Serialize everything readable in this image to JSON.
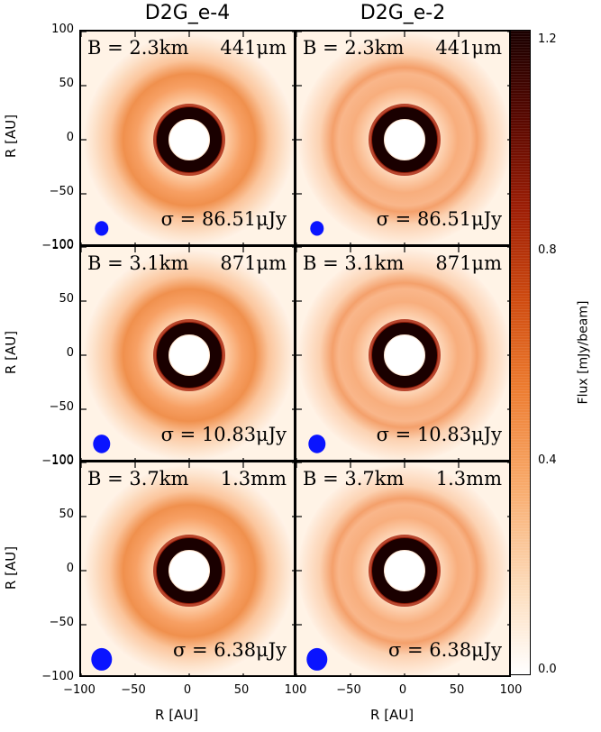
{
  "figure": {
    "columns": [
      "D2G_e-4",
      "D2G_e-2"
    ],
    "rows": [
      {
        "baseline": "B = 2.3km",
        "wavelength": "441μm",
        "sigma": "σ = 86.51μJy",
        "beam_rel_size": 0.6
      },
      {
        "baseline": "B = 3.1km",
        "wavelength": "871μm",
        "sigma": "σ = 10.83μJy",
        "beam_rel_size": 0.8
      },
      {
        "baseline": "B = 3.7km",
        "wavelength": "1.3mm",
        "sigma": "σ = 6.38μJy",
        "beam_rel_size": 1.0
      }
    ],
    "y_axis_label": "R [AU]",
    "x_axis_label": "R [AU]",
    "y_ticks": [
      "100",
      "50",
      "0",
      "−50",
      "−100"
    ],
    "x_ticks_left": [
      "−100",
      "−50",
      "0",
      "50",
      "100"
    ],
    "x_ticks_right": [
      "−100",
      "−50",
      "0",
      "50",
      "100"
    ],
    "colorbar": {
      "label": "Flux [mJy/beam]",
      "ticks": [
        "1.2",
        "0.8",
        "0.4",
        "0.0"
      ],
      "colormap": "gist_heat_r",
      "range": [
        0.0,
        1.22
      ]
    },
    "colors": {
      "beam": "#0a14ff",
      "ring": "#1a0000",
      "center": "#ffffff",
      "halo": "#e8762b"
    }
  },
  "chart_data": [
    {
      "type": "heatmap",
      "panel": "D2G_e-4 / 441μm",
      "title": "D2G_e-4",
      "xlim": [
        -100,
        100
      ],
      "ylim": [
        -100,
        100
      ],
      "xlabel": "",
      "ylabel": "R [AU]",
      "annotations": [
        "B = 2.3km",
        "441μm",
        "σ = 86.51μJy"
      ],
      "colorbar_range": [
        0,
        1.22
      ]
    },
    {
      "type": "heatmap",
      "panel": "D2G_e-2 / 441μm",
      "title": "D2G_e-2",
      "xlim": [
        -100,
        100
      ],
      "ylim": [
        -100,
        100
      ],
      "xlabel": "",
      "ylabel": "",
      "annotations": [
        "B = 2.3km",
        "441μm",
        "σ = 86.51μJy"
      ],
      "colorbar_range": [
        0,
        1.22
      ]
    },
    {
      "type": "heatmap",
      "panel": "D2G_e-4 / 871μm",
      "xlim": [
        -100,
        100
      ],
      "ylim": [
        -100,
        100
      ],
      "xlabel": "",
      "ylabel": "R [AU]",
      "annotations": [
        "B = 3.1km",
        "871μm",
        "σ = 10.83μJy"
      ],
      "colorbar_range": [
        0,
        1.22
      ]
    },
    {
      "type": "heatmap",
      "panel": "D2G_e-2 / 871μm",
      "xlim": [
        -100,
        100
      ],
      "ylim": [
        -100,
        100
      ],
      "xlabel": "",
      "ylabel": "",
      "annotations": [
        "B = 3.1km",
        "871μm",
        "σ = 10.83μJy"
      ],
      "colorbar_range": [
        0,
        1.22
      ]
    },
    {
      "type": "heatmap",
      "panel": "D2G_e-4 / 1.3mm",
      "xlim": [
        -100,
        100
      ],
      "ylim": [
        -100,
        100
      ],
      "xlabel": "R [AU]",
      "ylabel": "R [AU]",
      "annotations": [
        "B = 3.7km",
        "1.3mm",
        "σ = 6.38μJy"
      ],
      "colorbar_range": [
        0,
        1.22
      ]
    },
    {
      "type": "heatmap",
      "panel": "D2G_e-2 / 1.3mm",
      "xlim": [
        -100,
        100
      ],
      "ylim": [
        -100,
        100
      ],
      "xlabel": "R [AU]",
      "ylabel": "",
      "annotations": [
        "B = 3.7km",
        "1.3mm",
        "σ = 6.38μJy"
      ],
      "colorbar_range": [
        0,
        1.22
      ]
    }
  ]
}
